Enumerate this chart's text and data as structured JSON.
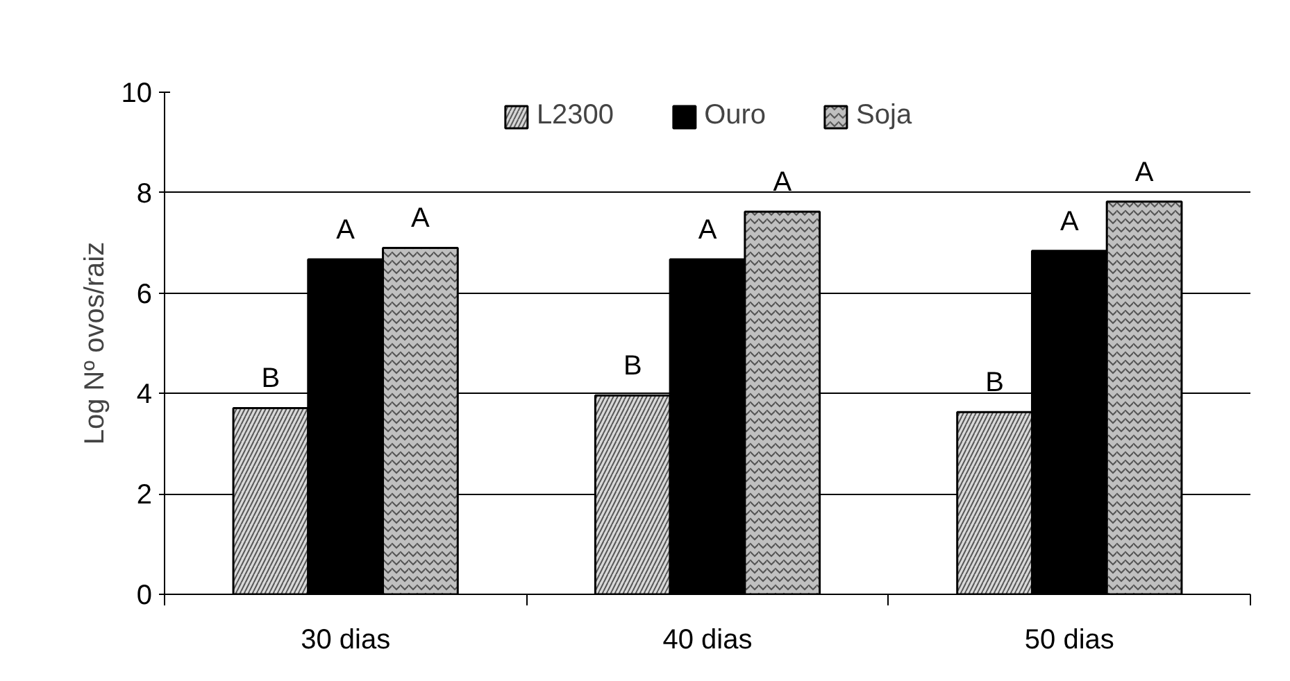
{
  "chart_data": {
    "type": "bar",
    "categories": [
      "30 dias",
      "40 dias",
      "50 dias"
    ],
    "ylabel": "Log Nº ovos/raiz",
    "ylim": [
      0,
      10
    ],
    "yticks": [
      0,
      2,
      4,
      6,
      8,
      10
    ],
    "grid": "y",
    "legend": "top",
    "series": [
      {
        "name": "L2300",
        "color": "#d9d9d9",
        "values": [
          3.71,
          3.96,
          3.63
        ],
        "value_labels": [
          "B",
          "B",
          "B"
        ]
      },
      {
        "name": "Ouro",
        "color": "#000000",
        "values": [
          6.67,
          6.67,
          6.84
        ],
        "value_labels": [
          "A",
          "A",
          "A"
        ]
      },
      {
        "name": "Soja",
        "color": "#c0c0c0",
        "values": [
          6.9,
          7.62,
          7.82
        ],
        "value_labels": [
          "A",
          "A",
          "A"
        ]
      }
    ]
  }
}
